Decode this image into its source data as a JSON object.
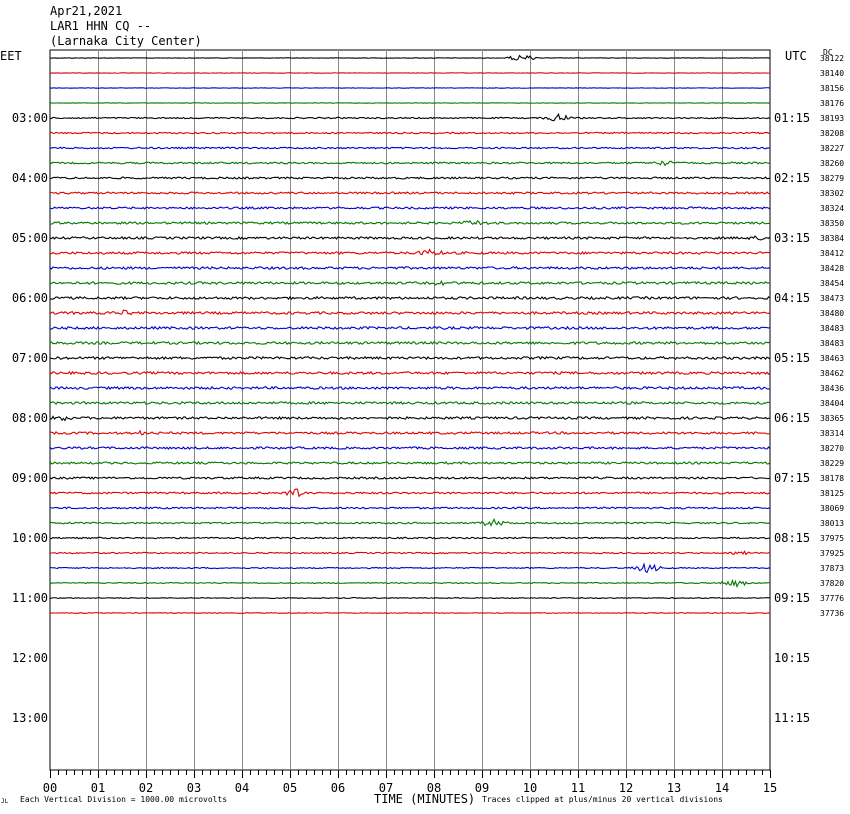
{
  "header": {
    "date": "Apr21,2021",
    "station": "LAR1 HHN CQ --",
    "location": "(Larnaka City Center)"
  },
  "left_zone_label": "EET",
  "right_zone_label": "UTC",
  "dc_label": "DC",
  "footer": {
    "marker": "JL",
    "scale_note": "Each Vertical Division = 1000.00 microvolts",
    "xlabel": "TIME (MINUTES)",
    "clip_note": "Traces clipped at plus/minus 20 vertical divisions"
  },
  "colors": {
    "cycle": [
      "#000000",
      "#e00000",
      "#0000cc",
      "#007a00"
    ],
    "grid": "#888888",
    "frame": "#000000"
  },
  "chart_data": {
    "type": "line",
    "chart_kind": "seismogram helicorder",
    "x_ticks": [
      "00",
      "01",
      "02",
      "03",
      "04",
      "05",
      "06",
      "07",
      "08",
      "09",
      "10",
      "11",
      "12",
      "13",
      "14",
      "15"
    ],
    "xlim": [
      0,
      15
    ],
    "left_hour_labels": [
      "03:00",
      "04:00",
      "05:00",
      "06:00",
      "07:00",
      "08:00",
      "09:00",
      "10:00",
      "11:00",
      "12:00",
      "13:00"
    ],
    "right_hour_labels": [
      "01:15",
      "02:15",
      "03:15",
      "04:15",
      "05:15",
      "06:15",
      "07:15",
      "08:15",
      "09:15",
      "10:15",
      "11:15"
    ],
    "dc_offsets": [
      38122,
      38140,
      38156,
      38176,
      38193,
      38208,
      38227,
      38260,
      38279,
      38302,
      38324,
      38350,
      38384,
      38412,
      38428,
      38454,
      38473,
      38480,
      38483,
      38483,
      38463,
      38462,
      38436,
      38404,
      38365,
      38314,
      38270,
      38229,
      38178,
      38125,
      38069,
      38013,
      37975,
      37925,
      37873,
      37820,
      37776,
      37736
    ],
    "trace_count": 38,
    "total_rows": 48
  }
}
